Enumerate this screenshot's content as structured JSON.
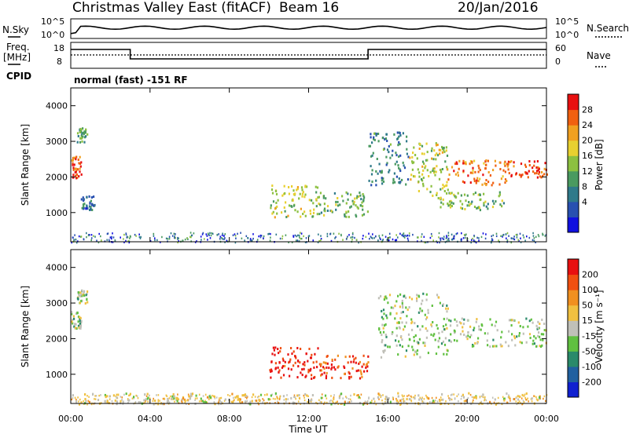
{
  "header": {
    "station": "Christmas Valley East (fitACF)",
    "beam": "Beam 16",
    "date": "20/Jan/2016"
  },
  "status_panels": {
    "nsky_label": "N.Sky",
    "nsearch_label": "N.Search",
    "nsky_ticks": [
      "10^5",
      "10^0"
    ],
    "nsearch_ticks": [
      "10^5",
      "10^0"
    ],
    "freq_label_1": "Freq.",
    "freq_label_2": "[MHz]",
    "freq_ticks": [
      "18",
      "8"
    ],
    "nave_label": "Nave",
    "nave_ticks": [
      "60",
      "0"
    ],
    "cpid_label": "CPID",
    "cpid_text": "normal (fast) -151 RF"
  },
  "chart_data": [
    {
      "type": "heatmap",
      "name": "power",
      "ylabel": "Slant Range [km]",
      "ylim": [
        180,
        4500
      ],
      "yticks": [
        1000,
        2000,
        3000,
        4000
      ],
      "xlim": [
        0,
        24
      ],
      "colorbar_label": "Power [dB]",
      "colorbar_ticks": [
        "28",
        "24",
        "20",
        "16",
        "12",
        "8",
        "4"
      ],
      "colorbar_colors": [
        "#1010e0",
        "#2850b0",
        "#2f7a8a",
        "#4a9a60",
        "#8cc040",
        "#e8d030",
        "#f0a020",
        "#f06010",
        "#e81010"
      ],
      "regions": [
        {
          "t": [
            0.0,
            0.5
          ],
          "r": [
            2000,
            2600
          ],
          "level": 0.85
        },
        {
          "t": [
            0.3,
            0.8
          ],
          "r": [
            3000,
            3400
          ],
          "level": 0.4
        },
        {
          "t": [
            0.5,
            1.2
          ],
          "r": [
            1100,
            1500
          ],
          "level": 0.25
        },
        {
          "t": [
            10.0,
            12.5
          ],
          "r": [
            900,
            1800
          ],
          "level": 0.55
        },
        {
          "t": [
            12.5,
            15.0
          ],
          "r": [
            900,
            1600
          ],
          "level": 0.45
        },
        {
          "t": [
            15.0,
            17.0
          ],
          "r": [
            1800,
            3300
          ],
          "level": 0.3
        },
        {
          "t": [
            17.0,
            19.0
          ],
          "r": [
            1500,
            3000
          ],
          "level": 0.55
        },
        {
          "t": [
            19.0,
            22.0
          ],
          "r": [
            1800,
            2500
          ],
          "level": 0.8
        },
        {
          "t": [
            22.0,
            24.0
          ],
          "r": [
            2000,
            2500
          ],
          "level": 0.9
        },
        {
          "t": [
            18.5,
            22.0
          ],
          "r": [
            1100,
            1600
          ],
          "level": 0.45
        }
      ]
    },
    {
      "type": "heatmap",
      "name": "velocity",
      "xlabel": "Time UT",
      "ylabel": "Slant Range [km]",
      "ylim": [
        180,
        4500
      ],
      "yticks": [
        1000,
        2000,
        3000,
        4000
      ],
      "xlim": [
        0,
        24
      ],
      "xticks": [
        "00:00",
        "04:00",
        "08:00",
        "12:00",
        "16:00",
        "20:00",
        "00:00"
      ],
      "colorbar_label": "Velocity [m s⁻¹]",
      "colorbar_ticks": [
        "200",
        "100",
        "50",
        "15",
        "-15",
        "-50",
        "-100",
        "-200"
      ],
      "colorbar_colors": [
        "#1020d0",
        "#2060a0",
        "#2a8a6a",
        "#60c040",
        "#c0c0b8",
        "#f0c040",
        "#f09020",
        "#f05010",
        "#e81010"
      ],
      "regions": [
        {
          "t": [
            0.0,
            0.5
          ],
          "r": [
            2300,
            2800
          ],
          "level": 0.45
        },
        {
          "t": [
            0.3,
            0.8
          ],
          "r": [
            3000,
            3400
          ],
          "level": 0.45
        },
        {
          "t": [
            10.0,
            12.5
          ],
          "r": [
            900,
            1800
          ],
          "level": 0.92
        },
        {
          "t": [
            12.5,
            15.0
          ],
          "r": [
            900,
            1600
          ],
          "level": 0.85
        },
        {
          "t": [
            15.5,
            19.0
          ],
          "r": [
            1500,
            3300
          ],
          "level": 0.45
        },
        {
          "t": [
            19.0,
            24.0
          ],
          "r": [
            1800,
            2600
          ],
          "level": 0.45
        },
        {
          "t": [
            0.0,
            24.0
          ],
          "r": [
            180,
            500
          ],
          "level": 0.55
        }
      ]
    }
  ]
}
